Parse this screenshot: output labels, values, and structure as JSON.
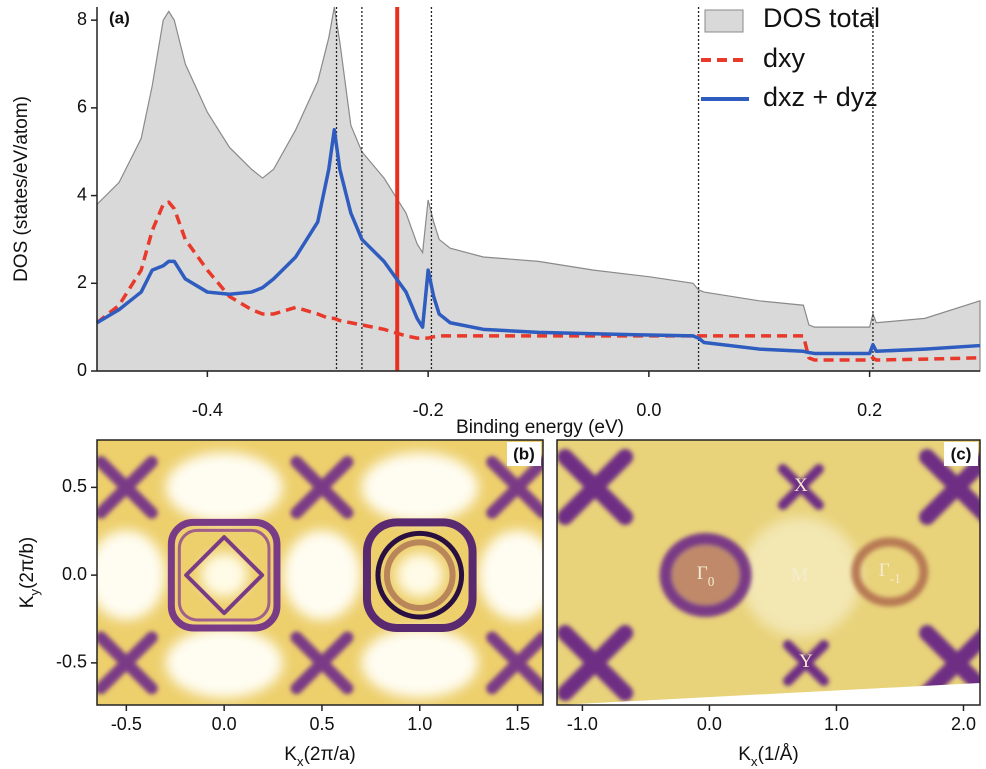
{
  "chart_data": [
    {
      "type": "line",
      "label": "(a)",
      "xlabel": "Binding energy (eV)",
      "ylabel": "DOS (states/eV/atom)",
      "x": [
        -0.5,
        -0.48,
        -0.46,
        -0.45,
        -0.44,
        -0.435,
        -0.43,
        -0.42,
        -0.4,
        -0.38,
        -0.36,
        -0.35,
        -0.34,
        -0.32,
        -0.3,
        -0.29,
        -0.285,
        -0.28,
        -0.27,
        -0.26,
        -0.24,
        -0.22,
        -0.21,
        -0.205,
        -0.2,
        -0.195,
        -0.19,
        -0.18,
        -0.15,
        -0.1,
        -0.05,
        0,
        0.04,
        0.045,
        0.05,
        0.1,
        0.14,
        0.145,
        0.15,
        0.2,
        0.203,
        0.206,
        0.25,
        0.3
      ],
      "series": [
        {
          "name": "DOS total",
          "style": "area",
          "color": "#d9d9d9",
          "values": [
            3.8,
            4.3,
            5.3,
            6.5,
            8.0,
            8.2,
            8.0,
            7.0,
            5.9,
            5.1,
            4.6,
            4.4,
            4.6,
            5.5,
            6.6,
            7.6,
            8.3,
            7.5,
            5.6,
            5.0,
            4.4,
            3.6,
            2.9,
            2.7,
            3.9,
            3.4,
            3.0,
            2.8,
            2.6,
            2.5,
            2.3,
            2.15,
            2.0,
            1.85,
            1.8,
            1.6,
            1.5,
            1.05,
            1.0,
            1.0,
            1.3,
            1.1,
            1.2,
            1.6
          ]
        },
        {
          "name": "dxy",
          "style": "dashed",
          "color": "#e8392a",
          "values": [
            1.1,
            1.5,
            2.3,
            3.2,
            3.8,
            3.85,
            3.7,
            3.0,
            2.3,
            1.7,
            1.4,
            1.3,
            1.3,
            1.45,
            1.3,
            1.2,
            1.2,
            1.15,
            1.1,
            1.05,
            0.95,
            0.8,
            0.75,
            0.75,
            0.75,
            0.78,
            0.8,
            0.8,
            0.8,
            0.8,
            0.8,
            0.8,
            0.8,
            0.8,
            0.8,
            0.8,
            0.8,
            0.3,
            0.25,
            0.25,
            0.3,
            0.25,
            0.27,
            0.3
          ]
        },
        {
          "name": "dxz + dyz",
          "style": "solid",
          "color": "#2e5cbf",
          "values": [
            1.1,
            1.4,
            1.8,
            2.3,
            2.4,
            2.5,
            2.5,
            2.1,
            1.8,
            1.75,
            1.8,
            1.9,
            2.1,
            2.6,
            3.4,
            4.6,
            5.5,
            4.6,
            3.6,
            3.0,
            2.5,
            1.8,
            1.2,
            1.0,
            2.3,
            1.7,
            1.3,
            1.1,
            0.95,
            0.88,
            0.85,
            0.82,
            0.8,
            0.75,
            0.65,
            0.5,
            0.45,
            0.42,
            0.4,
            0.4,
            0.6,
            0.45,
            0.5,
            0.58
          ]
        }
      ],
      "xlim": [
        -0.5,
        0.3
      ],
      "ylim": [
        0,
        8.3
      ],
      "xticks": [
        {
          "value": -0.4,
          "label": "-0.4"
        },
        {
          "value": -0.2,
          "label": "-0.2"
        },
        {
          "value": 0,
          "label": "0.0"
        },
        {
          "value": 0.2,
          "label": "0.2"
        }
      ],
      "yticks": [
        0,
        2,
        4,
        6,
        8
      ],
      "vlines": [
        -0.283,
        -0.26,
        -0.197,
        0.045,
        0.203
      ],
      "marker_line": {
        "x": -0.228,
        "color": "#e8301f"
      },
      "legend": "top-right"
    },
    {
      "type": "heatmap",
      "label": "(b)",
      "xlabel": [
        "K",
        "x",
        "(2π/a)"
      ],
      "ylabel": [
        "K",
        "y",
        "(2π/b)"
      ],
      "xlim": [
        -0.65,
        1.63
      ],
      "ylim": [
        -0.74,
        0.77
      ],
      "xticks": [
        {
          "value": -0.5,
          "label": "-0.5"
        },
        {
          "value": 0,
          "label": "0.0"
        },
        {
          "value": 0.5,
          "label": "0.5"
        },
        {
          "value": 1,
          "label": "1.0"
        },
        {
          "value": 1.5,
          "label": "1.5"
        }
      ],
      "yticks": [
        {
          "value": -0.5,
          "label": "-0.5"
        },
        {
          "value": 0,
          "label": "0.0"
        },
        {
          "value": 0.5,
          "label": "0.5"
        }
      ]
    },
    {
      "type": "heatmap",
      "label": "(c)",
      "xlabel": [
        "K",
        "x",
        "(1/Å)"
      ],
      "xlim": [
        -1.2,
        2.13
      ],
      "xticks": [
        {
          "value": -1,
          "label": "-1.0"
        },
        {
          "value": 0,
          "label": "0.0"
        },
        {
          "value": 1,
          "label": "1.0"
        },
        {
          "value": 2,
          "label": "2.0"
        }
      ],
      "annotations": [
        {
          "text": [
            "X"
          ],
          "x": 0.72
        },
        {
          "text": [
            "Γ",
            "0"
          ],
          "x": -0.03
        },
        {
          "text": [
            "M"
          ],
          "x": 0.71
        },
        {
          "text": [
            "Γ",
            "-1"
          ],
          "x": 1.42
        },
        {
          "text": [
            "Y"
          ],
          "x": 0.76
        }
      ]
    }
  ]
}
